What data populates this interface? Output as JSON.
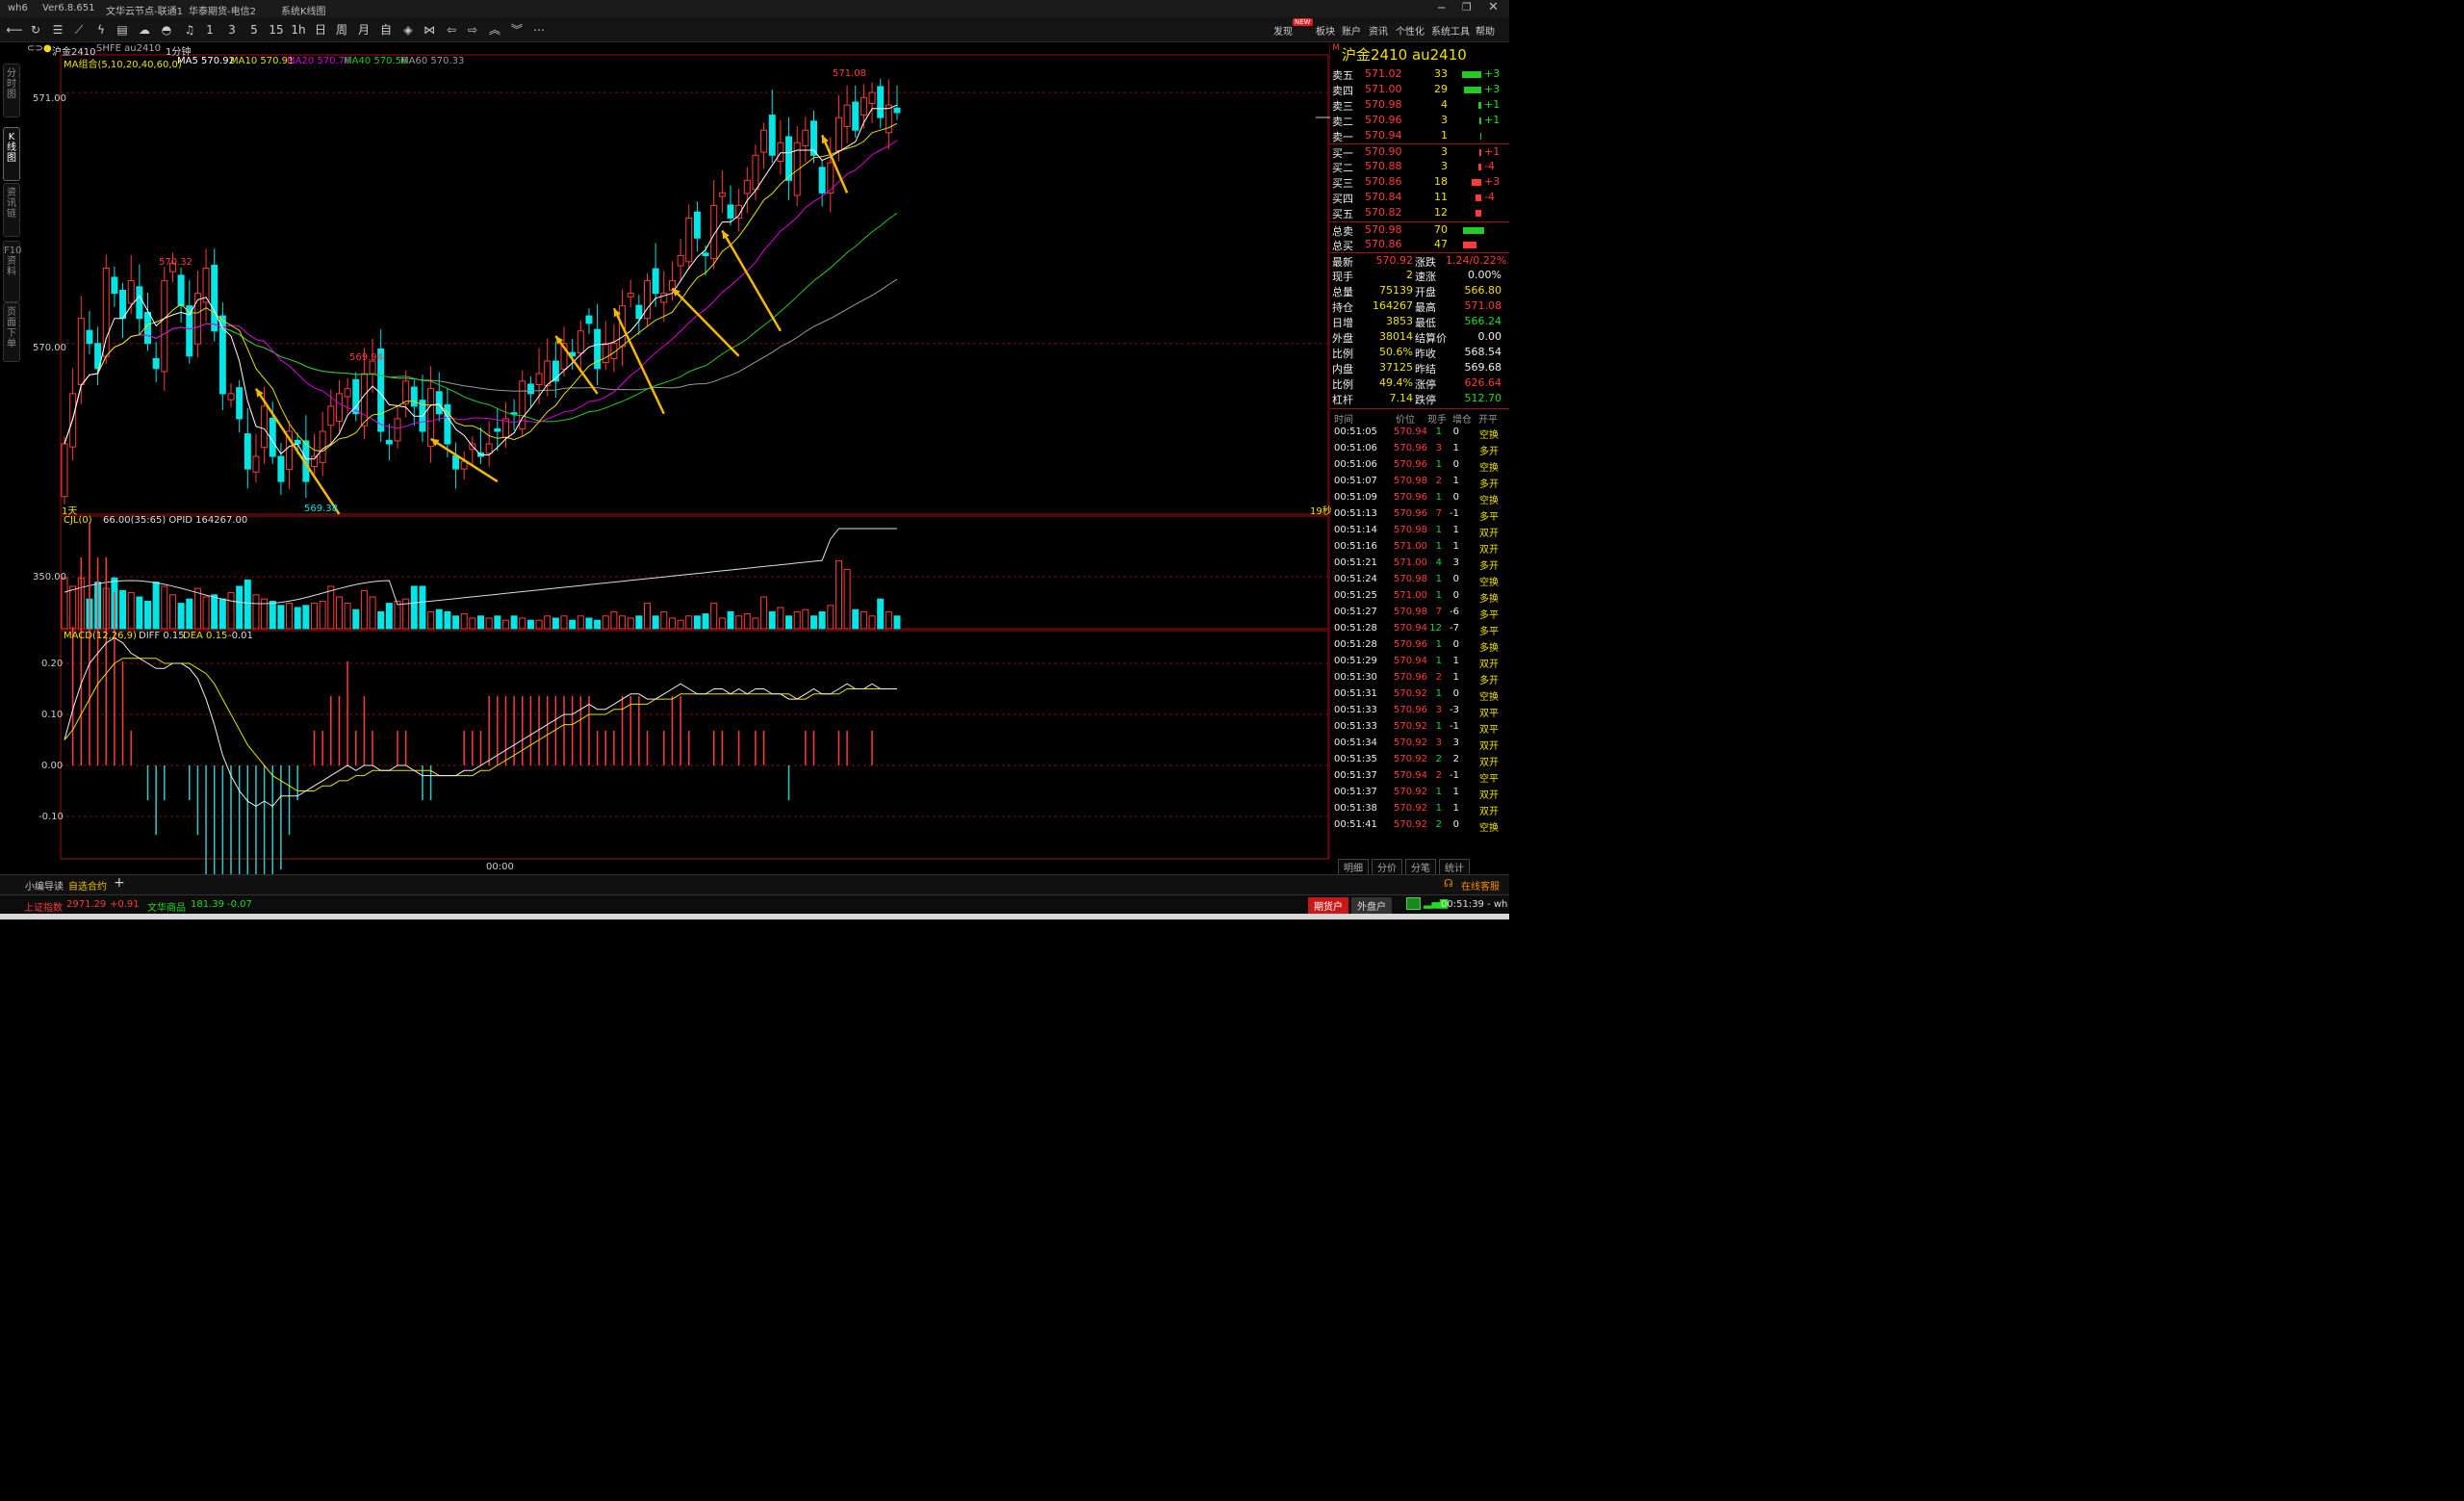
{
  "titlebar": {
    "app": "wh6",
    "version": "Ver6.8.651",
    "server1": "文华云节点-联通1",
    "server2": "华泰期货-电信2",
    "page": "系统K线图",
    "window_controls": [
      "minimize-icon",
      "restore-icon",
      "close-icon"
    ]
  },
  "toolbar": {
    "left_icons": [
      "back-icon",
      "refresh-icon",
      "list-icon",
      "chart-line-icon",
      "flash-icon",
      "grid-icon",
      "cloud-icon",
      "bell-icon"
    ],
    "periods": [
      "1",
      "3",
      "5",
      "15",
      "1h",
      "日",
      "周",
      "月",
      "自"
    ],
    "right_icons": [
      "diamond-icon",
      "bowtie-icon",
      "arrow-left-icon",
      "arrow-right-icon",
      "chevron-up-icon",
      "chevron-down-icon",
      "more-icon"
    ],
    "menu": [
      "发现",
      "板块",
      "账户",
      "资讯",
      "个性化",
      "系统工具",
      "帮助"
    ],
    "new_badge": "NEW"
  },
  "sidetabs": [
    "分时图",
    "K线图",
    "资讯链",
    "F10资料",
    "页面下单"
  ],
  "chart_header": {
    "symbol": "沪金2410",
    "code": "SHFE au2410",
    "period": "1分钟"
  },
  "colors": {
    "ma5": "#ffffff",
    "ma10": "#e8e000",
    "ma20": "#e000e0",
    "ma40": "#22cc22",
    "ma60": "#999999",
    "up": "#ff3b3b",
    "down": "#00e5e5",
    "arrow": "#f5b800"
  },
  "chart_data": [
    {
      "type": "candlestick",
      "title": "MA组合(5,10,20,40,60,0)",
      "legend": [
        {
          "name": "MA5",
          "value": "570.92"
        },
        {
          "name": "MA10",
          "value": "570.91"
        },
        {
          "name": "MA20",
          "value": "570.76"
        },
        {
          "name": "MA40",
          "value": "570.56"
        },
        {
          "name": "MA60",
          "value": "570.33"
        }
      ],
      "y_ticks": [
        "571.00",
        "570.00"
      ],
      "ylim": [
        569.32,
        571.15
      ],
      "annotations": [
        {
          "label": "570.32",
          "kind": "high"
        },
        {
          "label": "569.94",
          "kind": "high"
        },
        {
          "label": "569.38",
          "kind": "low"
        },
        {
          "label": "571.08",
          "kind": "high"
        }
      ],
      "left_label": "1天",
      "right_label": "19秒",
      "x_tick": "00:00",
      "closes": [
        569.6,
        569.8,
        570.1,
        570.0,
        569.9,
        570.3,
        570.2,
        570.1,
        570.25,
        570.1,
        570.0,
        569.9,
        570.25,
        570.32,
        570.15,
        569.95,
        570.2,
        570.3,
        570.05,
        569.8,
        569.8,
        569.7,
        569.5,
        569.55,
        569.75,
        569.55,
        569.45,
        569.65,
        569.6,
        569.45,
        569.55,
        569.65,
        569.75,
        569.8,
        569.82,
        569.72,
        569.88,
        569.93,
        569.65,
        569.6,
        569.7,
        569.85,
        569.75,
        569.65,
        569.82,
        569.72,
        569.6,
        569.5,
        569.53,
        569.6,
        569.55,
        569.6,
        569.65,
        569.7,
        569.72,
        569.85,
        569.8,
        569.88,
        569.93,
        569.85,
        570.0,
        569.95,
        570.05,
        570.08,
        569.9,
        570.0,
        570.0,
        570.15,
        570.2,
        570.1,
        570.25,
        570.2,
        570.2,
        570.25,
        570.35,
        570.5,
        570.42,
        570.35,
        570.55,
        570.6,
        570.5,
        570.55,
        570.65,
        570.75,
        570.85,
        570.75,
        570.8,
        570.65,
        570.8,
        570.85,
        570.75,
        570.6,
        570.72,
        570.9,
        570.95,
        570.85,
        570.98,
        571.0,
        570.9,
        570.95,
        570.92
      ],
      "volume": {
        "title": "CJL(0)",
        "legend": "66.00(35:65)  OPID 164267.00",
        "y_ticks": [
          "350.00"
        ],
        "bars": [
          240,
          200,
          240,
          140,
          220,
          190,
          240,
          180,
          170,
          150,
          130,
          220,
          200,
          160,
          120,
          140,
          190,
          150,
          160,
          140,
          170,
          200,
          230,
          160,
          140,
          130,
          110,
          120,
          100,
          110,
          120,
          130,
          200,
          150,
          120,
          90,
          180,
          150,
          80,
          120,
          130,
          140,
          200,
          200,
          80,
          90,
          80,
          60,
          70,
          50,
          60,
          50,
          60,
          40,
          60,
          50,
          40,
          40,
          60,
          50,
          60,
          40,
          60,
          50,
          40,
          60,
          80,
          60,
          50,
          60,
          120,
          60,
          80,
          50,
          40,
          60,
          60,
          70,
          120,
          50,
          80,
          60,
          70,
          50,
          150,
          80,
          100,
          60,
          80,
          90,
          60,
          80,
          110,
          320,
          280,
          90,
          80,
          60,
          140,
          80,
          60
        ],
        "oi_line": "rising"
      },
      "macd": {
        "title": "MACD(12,26,9)",
        "diff_label": "DIFF 0.15",
        "dea_label": "DEA 0.15",
        "macd_label": "-0.01",
        "y_ticks": [
          "0.20",
          "0.10",
          "0.00",
          "-0.10"
        ],
        "diff": [
          0.05,
          0.11,
          0.16,
          0.2,
          0.22,
          0.24,
          0.25,
          0.24,
          0.22,
          0.21,
          0.2,
          0.19,
          0.19,
          0.2,
          0.2,
          0.19,
          0.17,
          0.13,
          0.08,
          0.02,
          -0.02,
          -0.05,
          -0.07,
          -0.08,
          -0.07,
          -0.08,
          -0.06,
          -0.06,
          -0.06,
          -0.05,
          -0.04,
          -0.03,
          -0.02,
          -0.01,
          0.0,
          -0.01,
          0.0,
          0.0,
          -0.01,
          -0.01,
          0.0,
          0.0,
          -0.01,
          -0.02,
          -0.02,
          -0.02,
          -0.02,
          -0.02,
          -0.01,
          -0.01,
          0.0,
          0.01,
          0.02,
          0.03,
          0.04,
          0.05,
          0.06,
          0.07,
          0.08,
          0.09,
          0.1,
          0.1,
          0.11,
          0.12,
          0.11,
          0.11,
          0.12,
          0.13,
          0.14,
          0.14,
          0.13,
          0.13,
          0.14,
          0.15,
          0.16,
          0.15,
          0.14,
          0.14,
          0.15,
          0.15,
          0.14,
          0.15,
          0.14,
          0.15,
          0.15,
          0.14,
          0.14,
          0.13,
          0.13,
          0.14,
          0.15,
          0.14,
          0.14,
          0.15,
          0.16,
          0.15,
          0.15,
          0.16,
          0.15,
          0.15,
          0.15
        ],
        "dea": [
          0.05,
          0.07,
          0.1,
          0.13,
          0.16,
          0.18,
          0.2,
          0.21,
          0.21,
          0.21,
          0.21,
          0.21,
          0.2,
          0.2,
          0.2,
          0.2,
          0.19,
          0.18,
          0.16,
          0.13,
          0.1,
          0.07,
          0.04,
          0.02,
          0.0,
          -0.02,
          -0.03,
          -0.04,
          -0.05,
          -0.05,
          -0.05,
          -0.04,
          -0.04,
          -0.03,
          -0.03,
          -0.02,
          -0.02,
          -0.01,
          -0.01,
          -0.01,
          -0.01,
          -0.01,
          -0.01,
          -0.01,
          -0.01,
          -0.02,
          -0.02,
          -0.02,
          -0.02,
          -0.02,
          -0.01,
          -0.01,
          0.0,
          0.01,
          0.02,
          0.03,
          0.04,
          0.05,
          0.06,
          0.07,
          0.08,
          0.08,
          0.09,
          0.1,
          0.1,
          0.1,
          0.11,
          0.11,
          0.12,
          0.12,
          0.12,
          0.13,
          0.13,
          0.13,
          0.14,
          0.14,
          0.14,
          0.14,
          0.14,
          0.14,
          0.14,
          0.14,
          0.14,
          0.14,
          0.14,
          0.14,
          0.14,
          0.14,
          0.13,
          0.13,
          0.14,
          0.14,
          0.14,
          0.14,
          0.15,
          0.15,
          0.15,
          0.15,
          0.15,
          0.15,
          0.15
        ]
      }
    }
  ],
  "quote": {
    "title": "沪金2410  au2410",
    "asks": [
      {
        "label": "卖五",
        "price": "571.02",
        "vol": "33",
        "chg": "+3"
      },
      {
        "label": "卖四",
        "price": "571.00",
        "vol": "29",
        "chg": "+3"
      },
      {
        "label": "卖三",
        "price": "570.98",
        "vol": "4",
        "chg": "+1"
      },
      {
        "label": "卖二",
        "price": "570.96",
        "vol": "3",
        "chg": "+1"
      },
      {
        "label": "卖一",
        "price": "570.94",
        "vol": "1",
        "chg": ""
      }
    ],
    "bids": [
      {
        "label": "买一",
        "price": "570.90",
        "vol": "3",
        "chg": "+1"
      },
      {
        "label": "买二",
        "price": "570.88",
        "vol": "3",
        "chg": "-4"
      },
      {
        "label": "买三",
        "price": "570.86",
        "vol": "18",
        "chg": "+3"
      },
      {
        "label": "买四",
        "price": "570.84",
        "vol": "11",
        "chg": "-4"
      },
      {
        "label": "买五",
        "price": "570.82",
        "vol": "12",
        "chg": ""
      }
    ],
    "totals": [
      {
        "label": "总卖",
        "price": "570.98",
        "vol": "70"
      },
      {
        "label": "总买",
        "price": "570.86",
        "vol": "47"
      }
    ],
    "stats": [
      {
        "l1": "最新",
        "v1": "570.92",
        "l2": "涨跌",
        "v2": "1.24/0.22%"
      },
      {
        "l1": "现手",
        "v1": "2",
        "l2": "速涨",
        "v2": "0.00%"
      },
      {
        "l1": "总量",
        "v1": "75139",
        "l2": "开盘",
        "v2": "566.80"
      },
      {
        "l1": "持仓",
        "v1": "164267",
        "l2": "最高",
        "v2": "571.08"
      },
      {
        "l1": "日增",
        "v1": "3853",
        "l2": "最低",
        "v2": "566.24"
      },
      {
        "l1": "外盘",
        "v1": "38014",
        "l2": "结算价",
        "v2": "0.00"
      },
      {
        "l1": "比例",
        "v1": "50.6%",
        "l2": "昨收",
        "v2": "568.54"
      },
      {
        "l1": "内盘",
        "v1": "37125",
        "l2": "昨结",
        "v2": "569.68"
      },
      {
        "l1": "比例",
        "v1": "49.4%",
        "l2": "涨停",
        "v2": "626.64"
      },
      {
        "l1": "杠杆",
        "v1": "7.14",
        "l2": "跌停",
        "v2": "512.70"
      }
    ],
    "trade_headers": [
      "时间",
      "价位",
      "现手",
      "增仓",
      "开平"
    ],
    "trades": [
      {
        "t": "00:51:05",
        "p": "570.94",
        "q": "1",
        "d": "0",
        "k": "空换"
      },
      {
        "t": "00:51:06",
        "p": "570.96",
        "q": "3",
        "d": "1",
        "k": "多开"
      },
      {
        "t": "00:51:06",
        "p": "570.96",
        "q": "1",
        "d": "0",
        "k": "空换"
      },
      {
        "t": "00:51:07",
        "p": "570.98",
        "q": "2",
        "d": "1",
        "k": "多开"
      },
      {
        "t": "00:51:09",
        "p": "570.96",
        "q": "1",
        "d": "0",
        "k": "空换"
      },
      {
        "t": "00:51:13",
        "p": "570.96",
        "q": "7",
        "d": "-1",
        "k": "多平"
      },
      {
        "t": "00:51:14",
        "p": "570.98",
        "q": "1",
        "d": "1",
        "k": "双开"
      },
      {
        "t": "00:51:16",
        "p": "571.00",
        "q": "1",
        "d": "1",
        "k": "双开"
      },
      {
        "t": "00:51:21",
        "p": "571.00",
        "q": "4",
        "d": "3",
        "k": "多开"
      },
      {
        "t": "00:51:24",
        "p": "570.98",
        "q": "1",
        "d": "0",
        "k": "空换"
      },
      {
        "t": "00:51:25",
        "p": "571.00",
        "q": "1",
        "d": "0",
        "k": "多换"
      },
      {
        "t": "00:51:27",
        "p": "570.98",
        "q": "7",
        "d": "-6",
        "k": "多平"
      },
      {
        "t": "00:51:28",
        "p": "570.94",
        "q": "12",
        "d": "-7",
        "k": "多平"
      },
      {
        "t": "00:51:28",
        "p": "570.96",
        "q": "1",
        "d": "0",
        "k": "多换"
      },
      {
        "t": "00:51:29",
        "p": "570.94",
        "q": "1",
        "d": "1",
        "k": "双开"
      },
      {
        "t": "00:51:30",
        "p": "570.96",
        "q": "2",
        "d": "1",
        "k": "多开"
      },
      {
        "t": "00:51:31",
        "p": "570.92",
        "q": "1",
        "d": "0",
        "k": "空换"
      },
      {
        "t": "00:51:33",
        "p": "570.96",
        "q": "3",
        "d": "-3",
        "k": "双平"
      },
      {
        "t": "00:51:33",
        "p": "570.92",
        "q": "1",
        "d": "-1",
        "k": "双平"
      },
      {
        "t": "00:51:34",
        "p": "570.92",
        "q": "3",
        "d": "3",
        "k": "双开"
      },
      {
        "t": "00:51:35",
        "p": "570.92",
        "q": "2",
        "d": "2",
        "k": "双开"
      },
      {
        "t": "00:51:37",
        "p": "570.94",
        "q": "2",
        "d": "-1",
        "k": "空平"
      },
      {
        "t": "00:51:37",
        "p": "570.92",
        "q": "1",
        "d": "1",
        "k": "双开"
      },
      {
        "t": "00:51:38",
        "p": "570.92",
        "q": "1",
        "d": "1",
        "k": "双开"
      },
      {
        "t": "00:51:41",
        "p": "570.92",
        "q": "2",
        "d": "0",
        "k": "空换"
      }
    ],
    "bottom_tabs": [
      "明细",
      "分价",
      "分笔",
      "统计"
    ]
  },
  "bottombar": {
    "tabs": [
      "小编导读",
      "自选合约"
    ],
    "add": "+",
    "support": "在线客服"
  },
  "statusbar": {
    "index1_name": "上证指数",
    "index1_value": "2971.29",
    "index1_chg": "+0.91",
    "index2_name": "文华商品",
    "index2_value": "181.39",
    "index2_chg": "-0.07",
    "btn_futures": "期货户",
    "btn_foreign": "外盘户",
    "clock": "00:51:39 - wh"
  }
}
